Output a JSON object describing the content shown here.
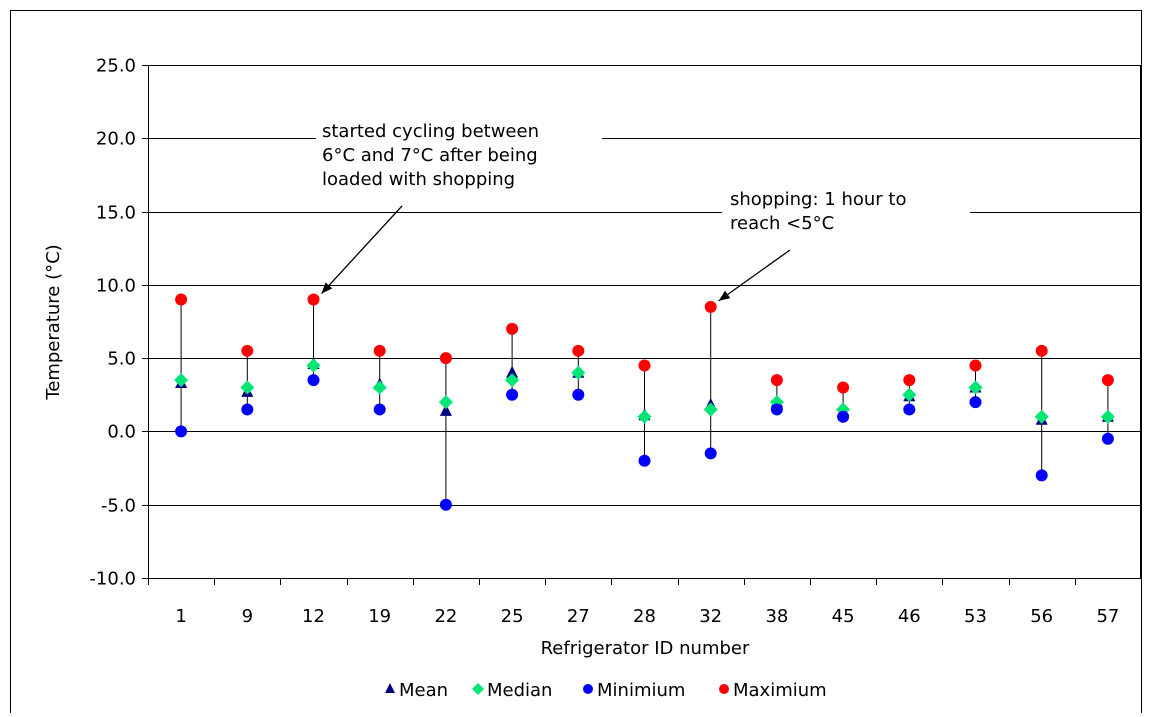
{
  "chart_data": {
    "type": "scatter",
    "title": "",
    "xlabel": "Refrigerator ID number",
    "ylabel": "Temperature (°C)",
    "ylim": [
      -10,
      25
    ],
    "yticks": [
      "25.0",
      "20.0",
      "15.0",
      "10.0",
      "5.0",
      "0.0",
      "-5.0",
      "-10.0"
    ],
    "ytick_values": [
      25,
      20,
      15,
      10,
      5,
      0,
      -5,
      -10
    ],
    "categories": [
      "1",
      "9",
      "12",
      "19",
      "22",
      "25",
      "27",
      "28",
      "32",
      "38",
      "45",
      "46",
      "53",
      "56",
      "57"
    ],
    "grid": "horizontal",
    "legend_position": "bottom",
    "range_lines": true,
    "series": [
      {
        "name": "Mean",
        "marker": "triangle",
        "color": "#000080",
        "values": [
          3.3,
          2.7,
          4.6,
          3.2,
          1.4,
          4.0,
          4.0,
          1.1,
          1.8,
          2.0,
          1.4,
          2.4,
          3.0,
          0.8,
          1.0
        ]
      },
      {
        "name": "Median",
        "marker": "diamond",
        "color": "#00e676",
        "values": [
          3.5,
          3.0,
          4.5,
          3.0,
          2.0,
          3.5,
          4.0,
          1.0,
          1.5,
          2.0,
          1.5,
          2.5,
          3.0,
          1.0,
          1.0
        ]
      },
      {
        "name": "Minimium",
        "marker": "circle",
        "color": "#0000ff",
        "values": [
          0.0,
          1.5,
          3.5,
          1.5,
          -5.0,
          2.5,
          2.5,
          -2.0,
          -1.5,
          1.5,
          1.0,
          1.5,
          2.0,
          -3.0,
          -0.5
        ]
      },
      {
        "name": "Maximium",
        "marker": "circle",
        "color": "#ff0000",
        "values": [
          9.0,
          5.5,
          9.0,
          5.5,
          5.0,
          7.0,
          5.5,
          4.5,
          8.5,
          3.5,
          3.0,
          3.5,
          4.5,
          5.5,
          3.5
        ]
      }
    ],
    "annotations": [
      {
        "lines": [
          "started cycling between",
          "6°C and 7°C after being",
          "loaded with shopping"
        ],
        "target_category": "12",
        "target_value": 9.0
      },
      {
        "lines": [
          "shopping: 1 hour to",
          "reach <5°C"
        ],
        "target_category": "32",
        "target_value": 8.5
      }
    ]
  }
}
